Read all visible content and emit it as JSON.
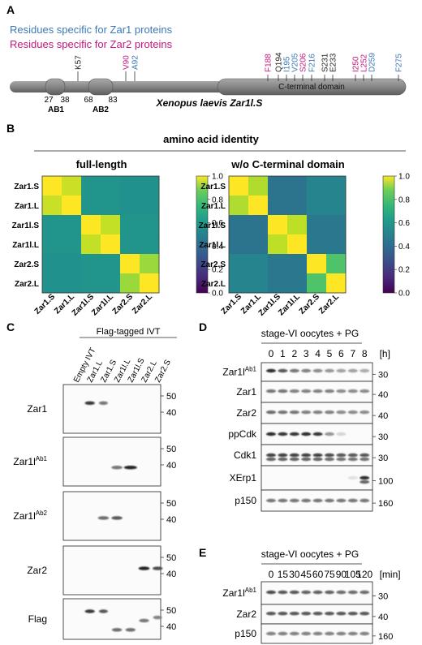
{
  "colors": {
    "zar1": "#3d78b8",
    "zar2": "#c2187f",
    "black": "#222222",
    "bar": "#888888"
  },
  "panelA": {
    "letter": "A",
    "legend_zar1": "Residues specific for Zar1 proteins",
    "legend_zar2": "Residues specific for Zar2 proteins",
    "title": "Xenopus laevis Zar1l.S",
    "ctd_label": "C-terminal domain",
    "ab1": "AB1",
    "ab2": "AB2",
    "numbers": [
      "27",
      "38",
      "68",
      "83"
    ],
    "top_residues": [
      {
        "label": "K57",
        "group": "common"
      },
      {
        "label": "V90",
        "group": "zar2"
      },
      {
        "label": "A92",
        "group": "zar1"
      }
    ],
    "ctd_residues": [
      {
        "label": "F188",
        "group": "zar2"
      },
      {
        "label": "Q194",
        "group": "common"
      },
      {
        "label": "I195",
        "group": "zar1"
      },
      {
        "label": "V205",
        "group": "zar1"
      },
      {
        "label": "S206",
        "group": "zar2"
      },
      {
        "label": "F216",
        "group": "zar1"
      },
      {
        "label": "S231",
        "group": "common"
      },
      {
        "label": "E233",
        "group": "common"
      },
      {
        "label": "I250",
        "group": "zar2"
      },
      {
        "label": "L252",
        "group": "zar2"
      },
      {
        "label": "D259",
        "group": "zar1"
      },
      {
        "label": "F275",
        "group": "zar1"
      }
    ]
  },
  "panelB": {
    "letter": "B",
    "title": "amino acid identity",
    "left_title": "full-length",
    "right_title": "w/o C-terminal domain",
    "labels": [
      "Zar1.S",
      "Zar1.L",
      "Zar1l.S",
      "Zar1l.L",
      "Zar2.S",
      "Zar2.L"
    ],
    "colorbar_ticks": [
      "1.0",
      "0.8",
      "0.6",
      "0.4",
      "0.2",
      "0.0"
    ]
  },
  "chart_data": [
    {
      "type": "heatmap",
      "title": "full-length",
      "x": [
        "Zar1.S",
        "Zar1.L",
        "Zar1l.S",
        "Zar1l.L",
        "Zar2.S",
        "Zar2.L"
      ],
      "y": [
        "Zar1.S",
        "Zar1.L",
        "Zar1l.S",
        "Zar1l.L",
        "Zar2.S",
        "Zar2.L"
      ],
      "values": [
        [
          1.0,
          0.92,
          0.52,
          0.52,
          0.5,
          0.5
        ],
        [
          0.92,
          1.0,
          0.52,
          0.52,
          0.5,
          0.5
        ],
        [
          0.52,
          0.52,
          1.0,
          0.91,
          0.52,
          0.52
        ],
        [
          0.52,
          0.52,
          0.91,
          1.0,
          0.52,
          0.52
        ],
        [
          0.5,
          0.5,
          0.52,
          0.52,
          1.0,
          0.85
        ],
        [
          0.5,
          0.5,
          0.52,
          0.52,
          0.85,
          1.0
        ]
      ],
      "zlim": [
        0,
        1
      ]
    },
    {
      "type": "heatmap",
      "title": "w/o C-terminal domain",
      "x": [
        "Zar1.S",
        "Zar1.L",
        "Zar1l.S",
        "Zar1l.L",
        "Zar2.S",
        "Zar2.L"
      ],
      "y": [
        "Zar1.S",
        "Zar1.L",
        "Zar1l.S",
        "Zar1l.L",
        "Zar2.S",
        "Zar2.L"
      ],
      "values": [
        [
          1.0,
          0.88,
          0.38,
          0.38,
          0.45,
          0.45
        ],
        [
          0.88,
          1.0,
          0.38,
          0.38,
          0.45,
          0.45
        ],
        [
          0.38,
          0.38,
          1.0,
          0.9,
          0.4,
          0.4
        ],
        [
          0.38,
          0.38,
          0.9,
          1.0,
          0.4,
          0.4
        ],
        [
          0.45,
          0.45,
          0.4,
          0.4,
          1.0,
          0.72
        ],
        [
          0.45,
          0.45,
          0.4,
          0.4,
          0.72,
          1.0
        ]
      ],
      "zlim": [
        0,
        1
      ]
    }
  ],
  "panelC": {
    "letter": "C",
    "flag_header": "Flag-tagged IVT",
    "lanes": [
      "Empty IVT",
      "Zar1.L",
      "Zar1.S",
      "Zar1l.L",
      "Zar1l.S",
      "Zar2.L",
      "Zar2.S"
    ],
    "blots": [
      {
        "label": "Zar1",
        "sup": "",
        "markers": [
          "50",
          "40"
        ],
        "bands": [
          {
            "lane": 1,
            "y": 0.35,
            "w": 0.7,
            "i": 0.85
          },
          {
            "lane": 2,
            "y": 0.35,
            "w": 0.6,
            "i": 0.55
          }
        ]
      },
      {
        "label": "Zar1l",
        "sup": "Ab1",
        "markers": [
          "50",
          "40"
        ],
        "bands": [
          {
            "lane": 3,
            "y": 0.65,
            "w": 0.8,
            "i": 0.55
          },
          {
            "lane": 4,
            "y": 0.65,
            "w": 1.0,
            "i": 0.95
          }
        ]
      },
      {
        "label": "Zar1l",
        "sup": "Ab2",
        "markers": [
          "50",
          "40"
        ],
        "bands": [
          {
            "lane": 2,
            "y": 0.55,
            "w": 0.8,
            "i": 0.6
          },
          {
            "lane": 3,
            "y": 0.55,
            "w": 0.8,
            "i": 0.7
          }
        ]
      },
      {
        "label": "Zar2",
        "sup": "",
        "markers": [
          "50",
          "40"
        ],
        "bands": [
          {
            "lane": 5,
            "y": 0.45,
            "w": 0.8,
            "i": 0.95
          },
          {
            "lane": 6,
            "y": 0.45,
            "w": 0.7,
            "i": 0.75
          }
        ]
      },
      {
        "label": "Flag",
        "sup": "",
        "markers": [
          "50",
          "40"
        ],
        "bands": [
          {
            "lane": 1,
            "y": 0.25,
            "w": 0.7,
            "i": 0.85
          },
          {
            "lane": 2,
            "y": 0.25,
            "w": 0.6,
            "i": 0.7
          },
          {
            "lane": 3,
            "y": 0.85,
            "w": 0.7,
            "i": 0.6
          },
          {
            "lane": 4,
            "y": 0.85,
            "w": 0.7,
            "i": 0.6
          },
          {
            "lane": 5,
            "y": 0.55,
            "w": 0.7,
            "i": 0.55
          },
          {
            "lane": 6,
            "y": 0.45,
            "w": 0.6,
            "i": 0.5
          }
        ]
      }
    ]
  },
  "panelD": {
    "letter": "D",
    "header": "stage-VI oocytes + PG",
    "unit": "[h]",
    "lanes": [
      "0",
      "1",
      "2",
      "3",
      "4",
      "5",
      "6",
      "7",
      "8"
    ],
    "blots": [
      {
        "label": "Zar1l",
        "sup": "Ab1",
        "markers": [
          "30"
        ],
        "intensity": [
          0.9,
          0.7,
          0.55,
          0.5,
          0.45,
          0.4,
          0.35,
          0.35,
          0.3
        ],
        "y": 0.4
      },
      {
        "label": "Zar1",
        "sup": "",
        "markers": [
          "40"
        ],
        "intensity": [
          0.55,
          0.55,
          0.5,
          0.5,
          0.5,
          0.5,
          0.45,
          0.45,
          0.45
        ],
        "y": 0.45
      },
      {
        "label": "Zar2",
        "sup": "",
        "markers": [
          "40"
        ],
        "intensity": [
          0.6,
          0.55,
          0.55,
          0.5,
          0.5,
          0.5,
          0.45,
          0.45,
          0.45
        ],
        "y": 0.45
      },
      {
        "label": "ppCdk",
        "sup": "",
        "markers": [
          "30"
        ],
        "intensity": [
          0.9,
          0.85,
          0.85,
          0.9,
          0.85,
          0.4,
          0.1,
          0.0,
          0.0
        ],
        "y": 0.5
      },
      {
        "label": "Cdk1",
        "sup": "",
        "markers": [
          "30"
        ],
        "intensity": [
          0.8,
          0.8,
          0.8,
          0.8,
          0.8,
          0.75,
          0.7,
          0.7,
          0.7
        ],
        "y": 0.5
      },
      {
        "label": "XErp1",
        "sup": "",
        "markers": [
          "100"
        ],
        "intensity": [
          0.0,
          0.0,
          0.0,
          0.0,
          0.0,
          0.0,
          0.0,
          0.05,
          0.9
        ],
        "y": 0.5
      },
      {
        "label": "p150",
        "sup": "",
        "markers": [
          "160"
        ],
        "intensity": [
          0.55,
          0.55,
          0.55,
          0.55,
          0.55,
          0.55,
          0.55,
          0.55,
          0.55
        ],
        "y": 0.5
      }
    ]
  },
  "panelE": {
    "letter": "E",
    "header": "stage-VI oocytes + PG",
    "unit": "[min]",
    "lanes": [
      "0",
      "15",
      "30",
      "45",
      "60",
      "75",
      "90",
      "105",
      "120"
    ],
    "blots": [
      {
        "label": "Zar1l",
        "sup": "Ab1",
        "markers": [
          "30"
        ],
        "intensity": [
          0.75,
          0.7,
          0.7,
          0.65,
          0.65,
          0.65,
          0.6,
          0.6,
          0.6
        ],
        "y": 0.45
      },
      {
        "label": "Zar2",
        "sup": "",
        "markers": [
          "40"
        ],
        "intensity": [
          0.7,
          0.7,
          0.7,
          0.7,
          0.7,
          0.7,
          0.7,
          0.7,
          0.7
        ],
        "y": 0.45
      },
      {
        "label": "p150",
        "sup": "",
        "markers": [
          "160"
        ],
        "intensity": [
          0.5,
          0.5,
          0.5,
          0.5,
          0.5,
          0.5,
          0.5,
          0.5,
          0.5
        ],
        "y": 0.5
      }
    ]
  }
}
